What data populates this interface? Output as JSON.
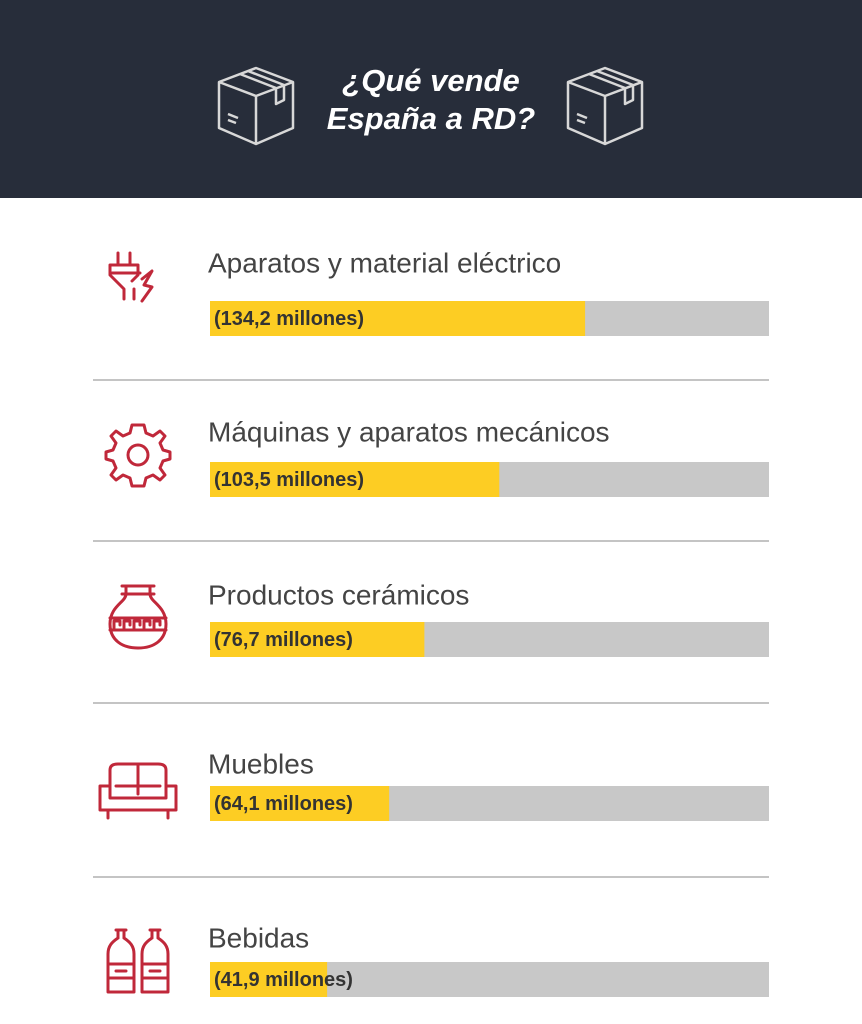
{
  "chart_data": {
    "type": "bar",
    "title": "¿Qué vende España a RD?",
    "categories": [
      "Aparatos y material eléctrico",
      "Máquinas y aparatos mecánicos",
      "Productos cerámicos",
      "Muebles",
      "Bebidas"
    ],
    "values": [
      134.2,
      103.5,
      76.7,
      64.1,
      41.9
    ],
    "value_labels": [
      "(134,2 millones)",
      "(103,5 millones)",
      "(76,7 millones)",
      "(64,1 millones)",
      "(41,9 millones)"
    ],
    "color": "#fdcd23",
    "track_color": "#c8c8c8",
    "xlim": [
      0,
      200
    ]
  }
}
